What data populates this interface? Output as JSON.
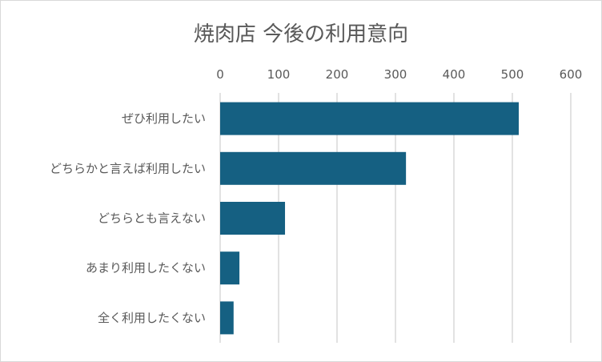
{
  "chart_data": {
    "type": "bar",
    "orientation": "horizontal",
    "title": "焼肉店 今後の利用意向",
    "categories": [
      "ぜひ利用したい",
      "どちらかと言えば利用したい",
      "どちらとも言えない",
      "あまり利用したくない",
      "全く利用したくない"
    ],
    "values": [
      511,
      318,
      111,
      33,
      23
    ],
    "xlim": [
      0,
      600
    ],
    "xticks": [
      0,
      100,
      200,
      300,
      400,
      500,
      600
    ],
    "x_axis_position": "top",
    "grid": true,
    "legend": "none",
    "bar_color": "#156082",
    "grid_color": "#d9d9d9"
  }
}
